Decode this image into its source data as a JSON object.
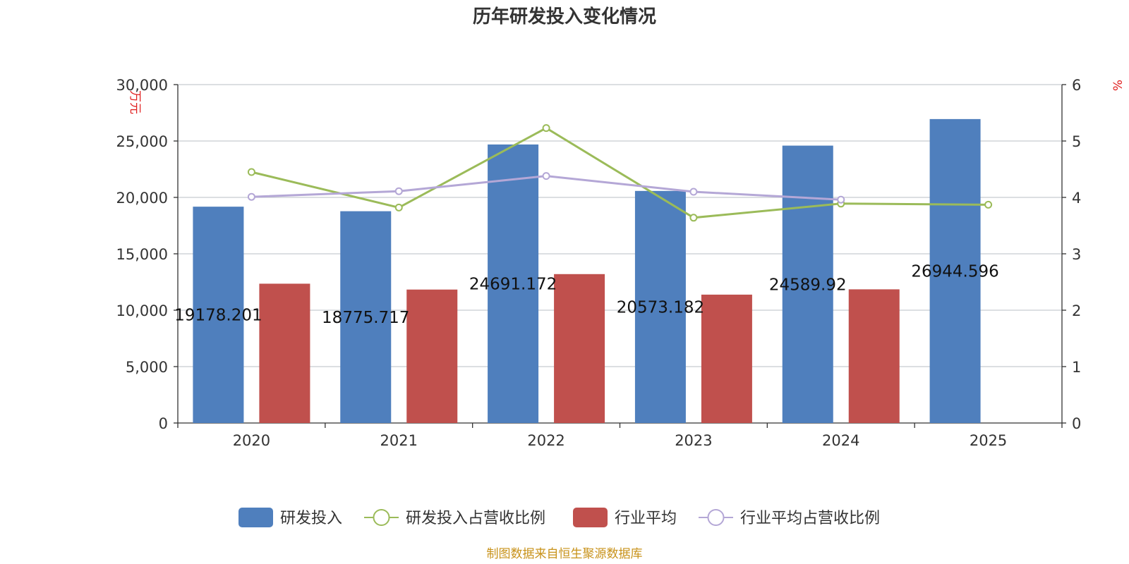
{
  "chart_data": {
    "type": "bar+line",
    "title": "历年研发投入变化情况",
    "categories": [
      "2020",
      "2021",
      "2022",
      "2023",
      "2024",
      "2025"
    ],
    "left_axis": {
      "unit": "万元",
      "min": 0,
      "max": 30000,
      "ticks": [
        0,
        5000,
        10000,
        15000,
        20000,
        25000,
        30000
      ],
      "tick_labels": [
        "0",
        "5,000",
        "10,000",
        "15,000",
        "20,000",
        "25,000",
        "30,000"
      ]
    },
    "right_axis": {
      "unit": "%",
      "min": 0,
      "max": 6,
      "ticks": [
        0,
        1,
        2,
        3,
        4,
        5,
        6
      ],
      "tick_labels": [
        "0",
        "1",
        "2",
        "3",
        "4",
        "5",
        "6"
      ]
    },
    "series": [
      {
        "name": "研发投入",
        "type": "bar",
        "axis": "left",
        "color": "#4f7fbd",
        "values": [
          19178.201,
          18775.717,
          24691.172,
          20573.182,
          24589.92,
          26944.596
        ],
        "labels": [
          "19178.201",
          "18775.717",
          "24691.172",
          "20573.182",
          "24589.92",
          "26944.596"
        ]
      },
      {
        "name": "研发投入占营收比例",
        "type": "line",
        "axis": "right",
        "color": "#9bbb59",
        "values": [
          4.45,
          3.82,
          5.23,
          3.64,
          3.89,
          3.87
        ]
      },
      {
        "name": "行业平均",
        "type": "bar",
        "axis": "left",
        "color": "#c0504d",
        "values": [
          12350,
          11830,
          13200,
          11380,
          11850,
          null
        ]
      },
      {
        "name": "行业平均占营收比例",
        "type": "line",
        "axis": "right",
        "color": "#b4a7d6",
        "values": [
          4.01,
          4.11,
          4.38,
          4.1,
          3.96,
          null
        ]
      }
    ],
    "legend": [
      "研发投入",
      "研发投入占营收比例",
      "行业平均",
      "行业平均占营收比例"
    ],
    "legend_position": "bottom-center",
    "grid": true
  },
  "footer": {
    "source": "制图数据来自恒生聚源数据库"
  }
}
